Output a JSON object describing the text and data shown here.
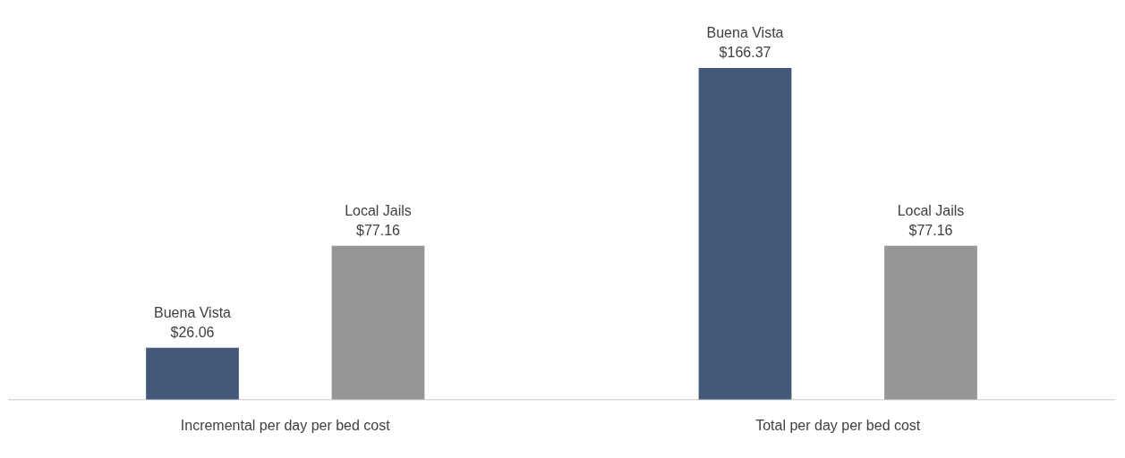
{
  "chart_data": {
    "type": "bar",
    "categories": [
      "Incremental per day per bed cost",
      "Total per day per bed cost"
    ],
    "series": [
      {
        "name": "Buena Vista",
        "color": "#44597a",
        "values": [
          26.06,
          166.37
        ],
        "value_labels": [
          "$26.06",
          "$166.37"
        ]
      },
      {
        "name": "Local Jails",
        "color": "#969696",
        "values": [
          77.16,
          77.16
        ],
        "value_labels": [
          "$77.16",
          "$77.16"
        ]
      }
    ],
    "grid": false,
    "legend": false,
    "tick_labels": "x"
  }
}
